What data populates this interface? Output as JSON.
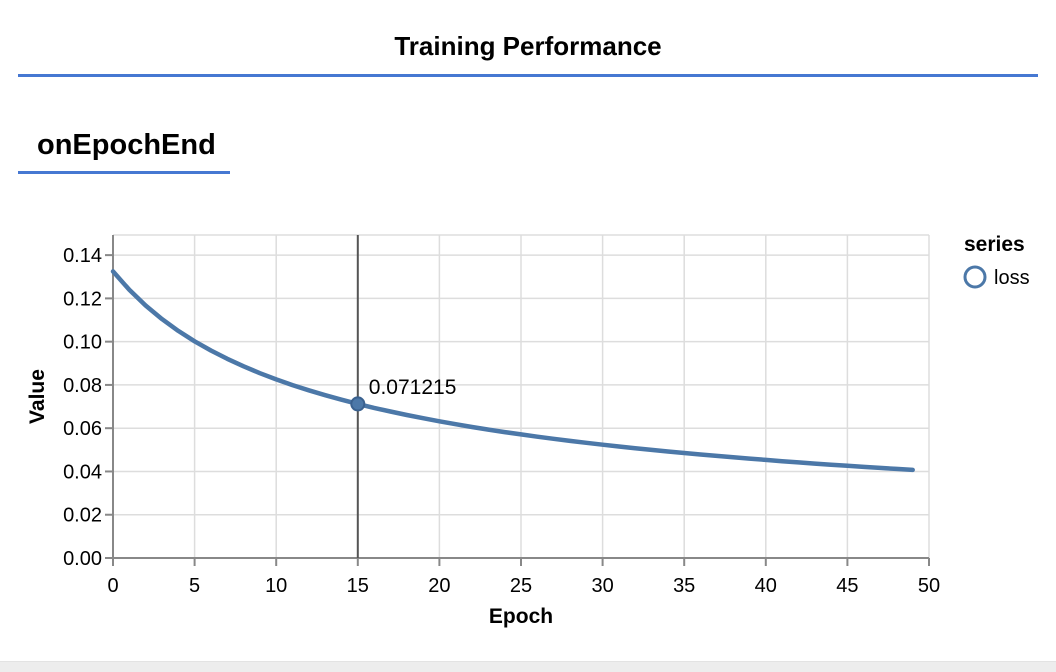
{
  "page": {
    "title": "Training Performance",
    "section_title": "onEpochEnd",
    "accent_color": "#4678d2",
    "footer_strip_color": "#ededed"
  },
  "chart_data": {
    "type": "line",
    "title": "onEpochEnd",
    "xlabel": "Epoch",
    "ylabel": "Value",
    "xlim": [
      0,
      50
    ],
    "ylim": [
      0,
      0.1493
    ],
    "x_ticks": [
      0,
      5,
      10,
      15,
      20,
      25,
      30,
      35,
      40,
      45,
      50
    ],
    "y_ticks": [
      0.0,
      0.02,
      0.04,
      0.06,
      0.08,
      0.1,
      0.12,
      0.14
    ],
    "grid": true,
    "colors": {
      "line": "#4c78a8",
      "marker_stroke": "#3a618f",
      "grid": "#dddddd",
      "axis": "#888888",
      "hover_rule": "#555555",
      "label_text": "#000000"
    },
    "legend": {
      "title": "series",
      "position": "right",
      "entries": [
        {
          "label": "loss",
          "color": "#4c78a8",
          "symbol": "circle-hollow"
        }
      ]
    },
    "series": [
      {
        "name": "loss",
        "color": "#4c78a8",
        "x": [
          0,
          1,
          2,
          3,
          4,
          5,
          6,
          7,
          8,
          9,
          10,
          11,
          12,
          13,
          14,
          15,
          16,
          17,
          18,
          19,
          20,
          21,
          22,
          23,
          24,
          25,
          26,
          27,
          28,
          29,
          30,
          31,
          32,
          33,
          34,
          35,
          36,
          37,
          38,
          39,
          40,
          41,
          42,
          43,
          44,
          45,
          46,
          47,
          48,
          49
        ],
        "values": [
          0.132489,
          0.123956,
          0.116698,
          0.110444,
          0.104988,
          0.100177,
          0.095896,
          0.092057,
          0.088591,
          0.085443,
          0.082568,
          0.07993,
          0.0775,
          0.075251,
          0.073162,
          0.071215,
          0.069401,
          0.067699,
          0.066101,
          0.064597,
          0.063178,
          0.061836,
          0.060566,
          0.05936,
          0.058215,
          0.057126,
          0.056087,
          0.055096,
          0.054148,
          0.053242,
          0.052374,
          0.051541,
          0.050742,
          0.049974,
          0.049235,
          0.048523,
          0.047838,
          0.047177,
          0.046539,
          0.045923,
          0.045328,
          0.044751,
          0.044194,
          0.043654,
          0.043131,
          0.042624,
          0.042132,
          0.041654,
          0.04119,
          0.040739
        ]
      }
    ],
    "highlight": {
      "series": "loss",
      "x": 15,
      "value": 0.071215,
      "label": "0.071215"
    }
  }
}
